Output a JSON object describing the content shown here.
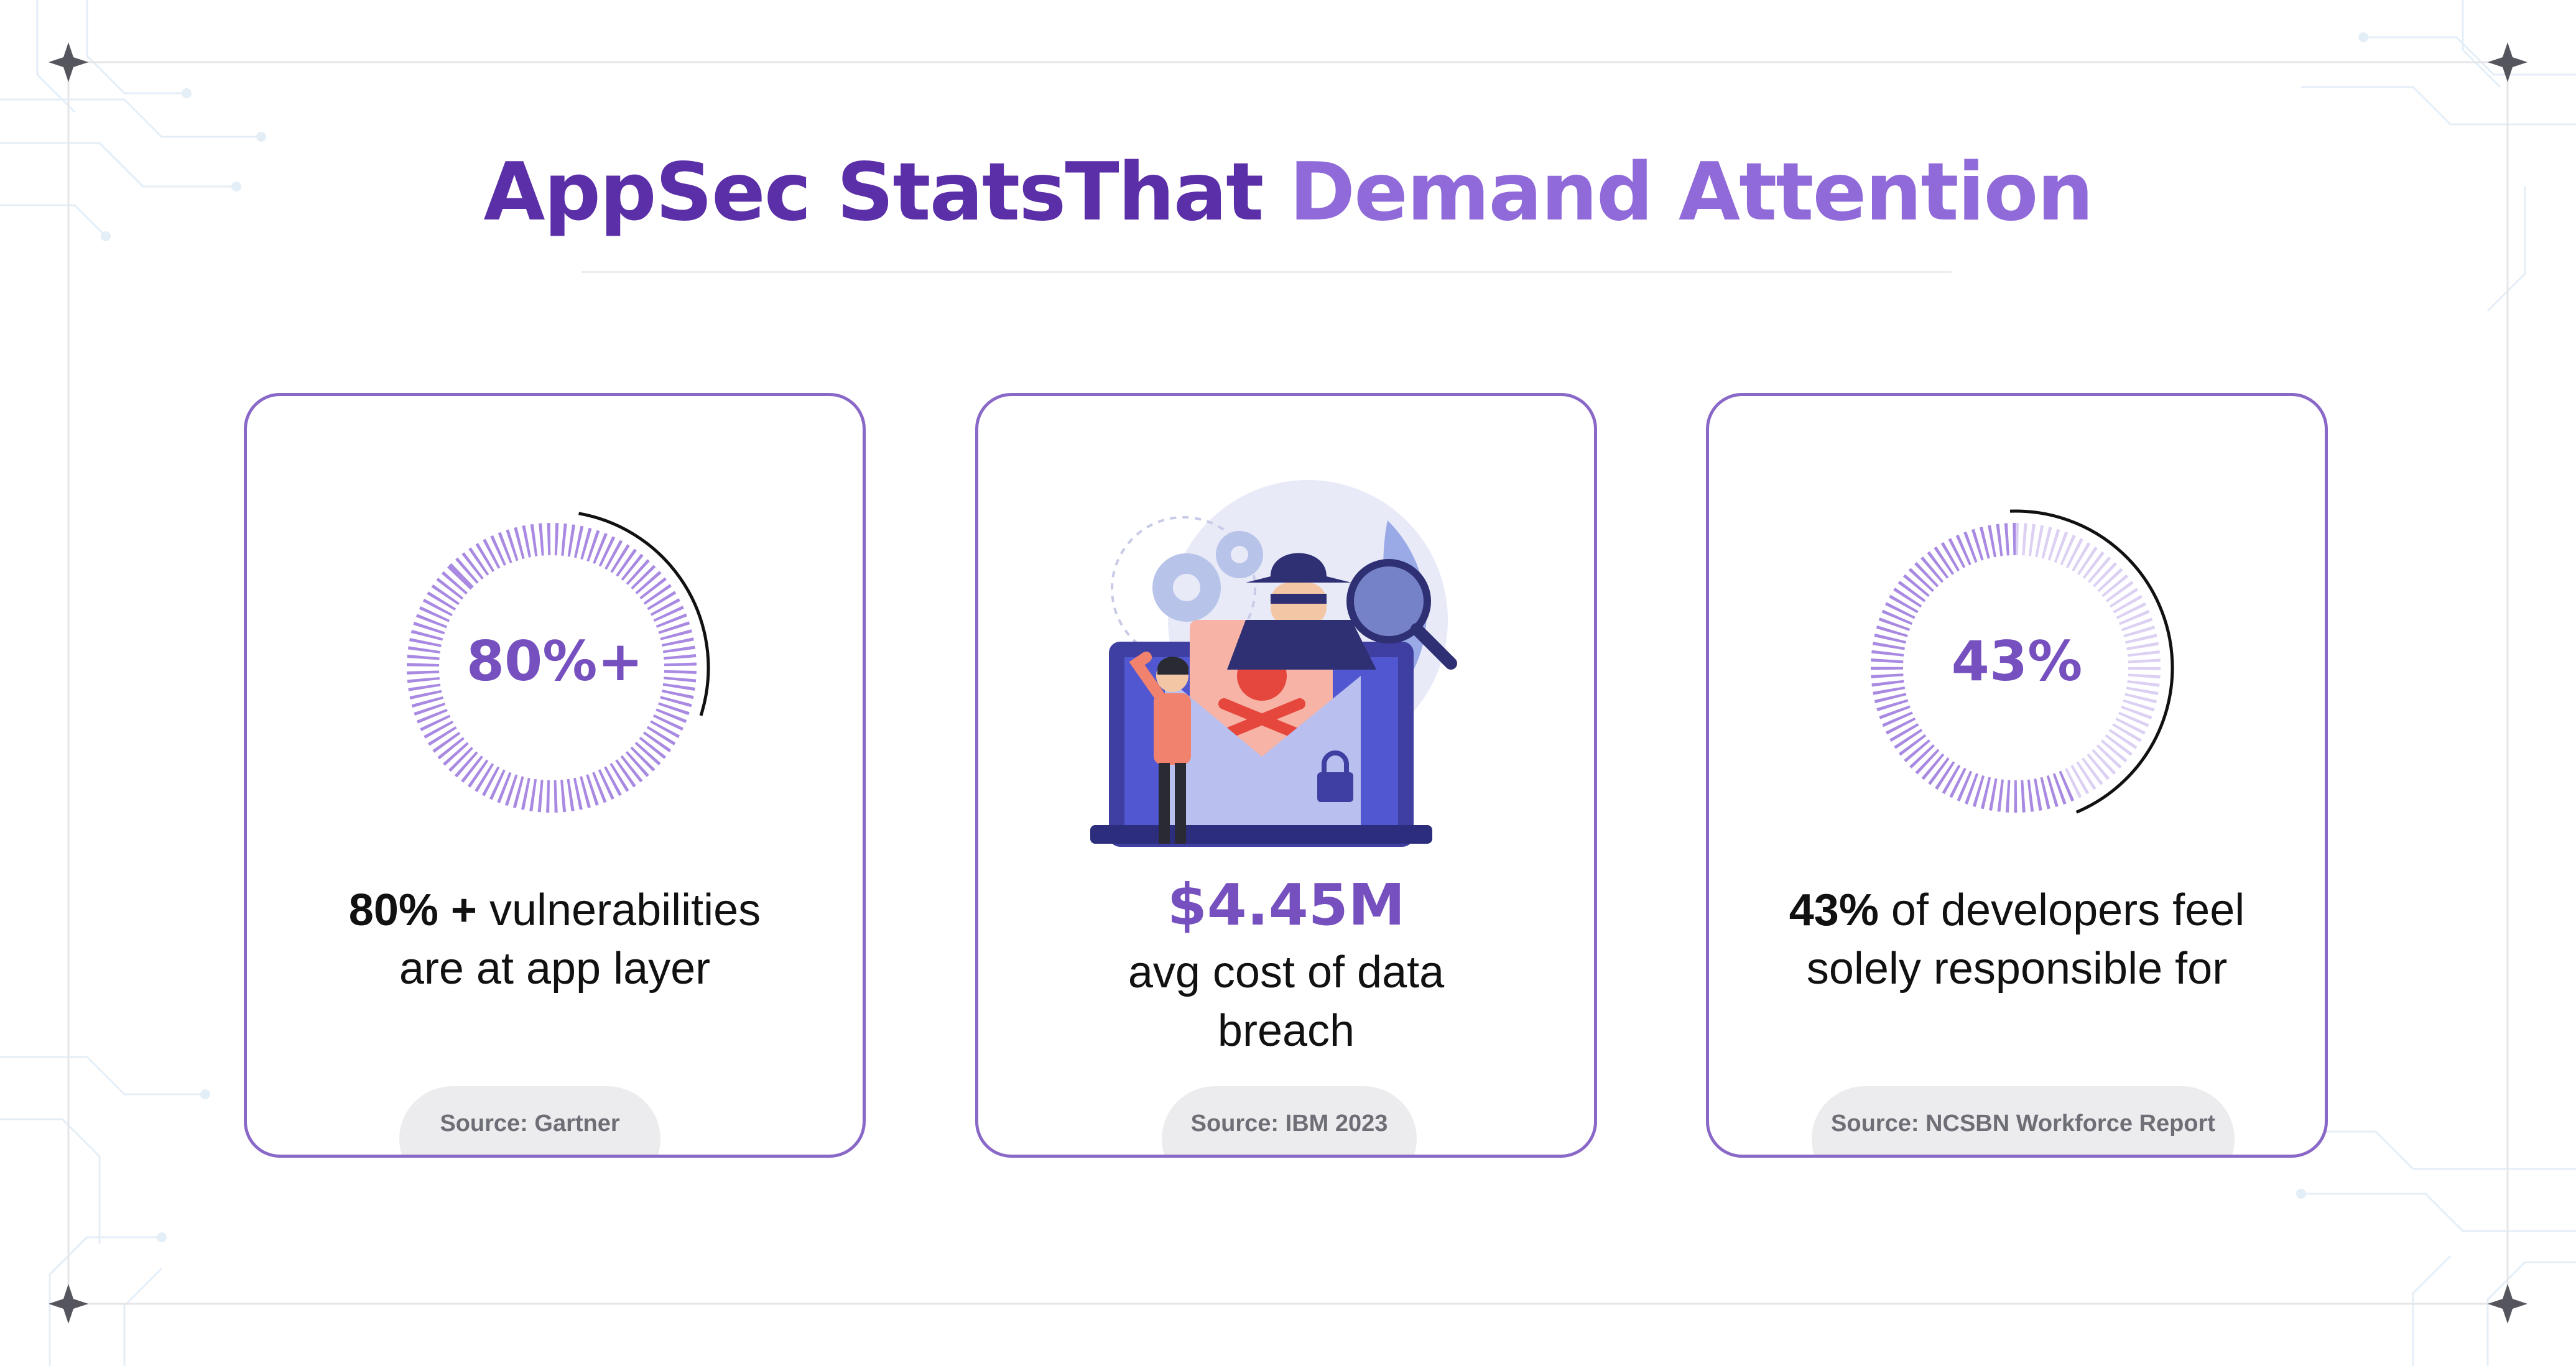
{
  "title": {
    "part1": "AppSec StatsThat",
    "part2": "Demand Attention"
  },
  "cards": [
    {
      "ring_value": "80%+",
      "highlight": "80% +",
      "line1_rest": " vulnerabilities",
      "line2": "are at app layer",
      "source": "Source: Gartner"
    },
    {
      "amount": "$4.45M",
      "line1": "avg cost of data",
      "line2": "breach",
      "source": "Source: IBM 2023",
      "icon": "data-breach-illustration"
    },
    {
      "ring_value": "43%",
      "highlight": "43%",
      "line1_rest": " of developers feel",
      "line2": "solely responsible for",
      "source": "Source: NCSBN Workforce Report"
    }
  ],
  "colors": {
    "accent": "#7650be",
    "title_dark": "#5b2fa8",
    "title_light": "#8f6ad8",
    "card_border": "#8a68c8"
  }
}
